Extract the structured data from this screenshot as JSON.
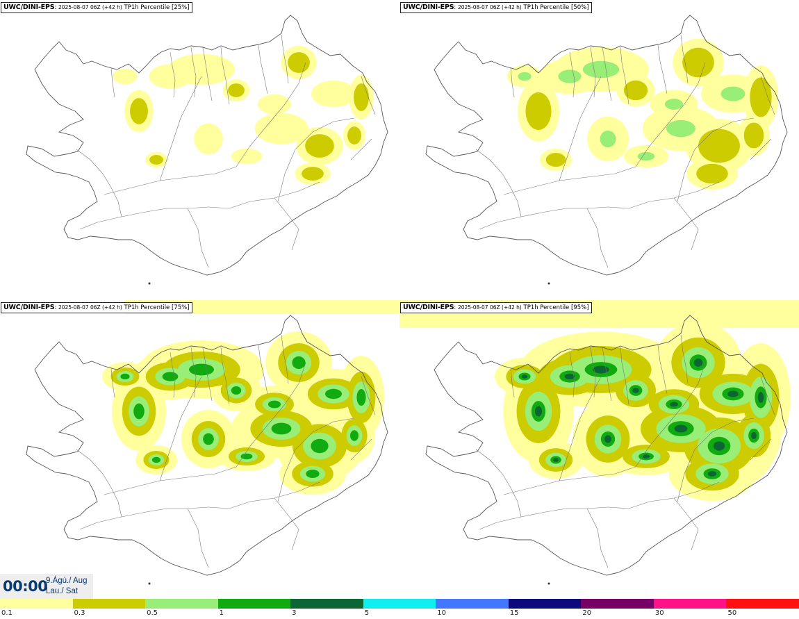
{
  "panels": [
    {
      "model": "UWC/DINI-EPS",
      "run": "2025-08-07 06Z (+42 h)",
      "label": "TP1h Percentile [25%]",
      "level": 0
    },
    {
      "model": "UWC/DINI-EPS",
      "run": "2025-08-07 06Z (+42 h)",
      "label": "TP1h Percentile [50%]",
      "level": 1
    },
    {
      "model": "UWC/DINI-EPS",
      "run": "2025-08-07 06Z (+42 h)",
      "label": "TP1h Percentile [75%]",
      "level": 2
    },
    {
      "model": "UWC/DINI-EPS",
      "run": "2025-08-07 06Z (+42 h)",
      "label": "TP1h Percentile [95%]",
      "level": 3
    }
  ],
  "valid_time": {
    "time": "00:00",
    "date_line1": "9.Ágú./ Aug",
    "date_line2": "Lau./ Sat"
  },
  "legend": {
    "labels": [
      "0.1",
      "0.3",
      "0.5",
      "1",
      "3",
      "5",
      "10",
      "15",
      "20",
      "30",
      "50"
    ],
    "colors": [
      "#ffff9e",
      "#cccc00",
      "#99ee77",
      "#11aa11",
      "#0b6633",
      "#11eeee",
      "#4477ff",
      "#0a0a7a",
      "#770066",
      "#ff1188",
      "#ff1111"
    ]
  },
  "colors": {
    "land_outline": "#555555",
    "roads": "#777777",
    "title_text": "#0b3a6e"
  }
}
